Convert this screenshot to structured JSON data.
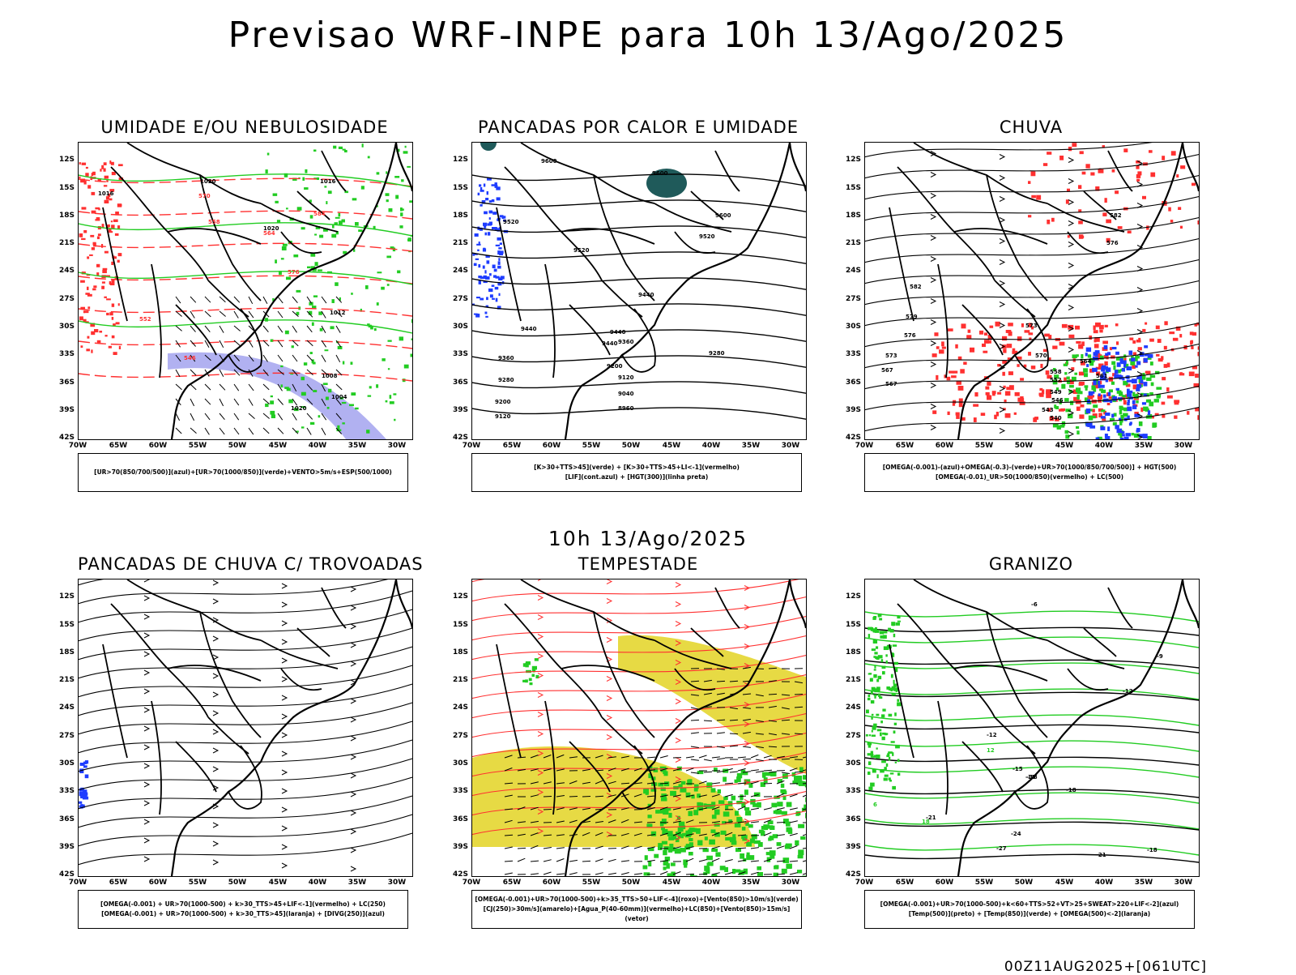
{
  "title": "Previsao WRF-INPE  para 10h 13/Ago/2025",
  "mid_title": "10h 13/Ago/2025",
  "footer": "00Z11AUG2025+[061UTC]",
  "lat_labels": [
    "12S",
    "15S",
    "18S",
    "21S",
    "24S",
    "27S",
    "30S",
    "33S",
    "36S",
    "39S",
    "42S"
  ],
  "lon_labels": [
    "70W",
    "65W",
    "60W",
    "55W",
    "50W",
    "45W",
    "40W",
    "35W",
    "30W"
  ],
  "colors": {
    "red": "#ff3030",
    "green": "#22cc22",
    "blue": "#1e3cff",
    "lavender": "#a8a8f0",
    "yellow": "#e6d83a",
    "teal": "#1f5a5a",
    "black": "#000000"
  },
  "panels": [
    {
      "id": "umidade",
      "title": "UMIDADE E/OU NEBULOSIDADE",
      "legend": [
        "[UR>70(850/700/500)](azul)+[UR>70(1000/850)](verde)+VENTO>5m/s+ESP(500/1000)"
      ],
      "contour_labels": [
        {
          "t": "1016",
          "c": "black"
        },
        {
          "t": "1020",
          "c": "black"
        },
        {
          "t": "1020",
          "c": "black"
        },
        {
          "t": "1016",
          "c": "black"
        },
        {
          "t": "1012",
          "c": "black"
        },
        {
          "t": "1008",
          "c": "black"
        },
        {
          "t": "1004",
          "c": "black"
        },
        {
          "t": "1020",
          "c": "black"
        },
        {
          "t": "576",
          "c": "red"
        },
        {
          "t": "570",
          "c": "red"
        },
        {
          "t": "564",
          "c": "red"
        },
        {
          "t": "558",
          "c": "red"
        },
        {
          "t": "552",
          "c": "red"
        },
        {
          "t": "546",
          "c": "red"
        },
        {
          "t": "584",
          "c": "red"
        }
      ]
    },
    {
      "id": "calor",
      "title": "PANCADAS POR CALOR E UMIDADE",
      "legend": [
        "[K>30+TTS>45](verde) + [K>30+TTS>45+LI<-1](vermelho)",
        "[LIF](cont.azul) + [HGT(300)](linha preta)"
      ],
      "contour_labels": [
        {
          "t": "9600",
          "c": "black"
        },
        {
          "t": "9600",
          "c": "black"
        },
        {
          "t": "9520",
          "c": "black"
        },
        {
          "t": "9520",
          "c": "black"
        },
        {
          "t": "9520",
          "c": "black"
        },
        {
          "t": "9600",
          "c": "black"
        },
        {
          "t": "9440",
          "c": "black"
        },
        {
          "t": "9440",
          "c": "black"
        },
        {
          "t": "9440",
          "c": "black"
        },
        {
          "t": "9360",
          "c": "black"
        },
        {
          "t": "9360",
          "c": "black"
        },
        {
          "t": "9280",
          "c": "black"
        },
        {
          "t": "9280",
          "c": "black"
        },
        {
          "t": "9200",
          "c": "black"
        },
        {
          "t": "9200",
          "c": "black"
        },
        {
          "t": "9120",
          "c": "black"
        },
        {
          "t": "9120",
          "c": "black"
        },
        {
          "t": "9040",
          "c": "black"
        },
        {
          "t": "8960",
          "c": "black"
        },
        {
          "t": "9440",
          "c": "black"
        }
      ]
    },
    {
      "id": "chuva",
      "title": "CHUVA",
      "legend": [
        "[OMEGA(-0.001)-(azul)+OMEGA(-0.3)-(verde)+UR>70(1000/850/700/500)] + HGT(500)",
        "[OMEGA(-0.01)_UR>50(1000/850)(vermelho) + LC(500)"
      ],
      "contour_labels": [
        {
          "t": "582",
          "c": "black"
        },
        {
          "t": "576",
          "c": "black"
        },
        {
          "t": "582",
          "c": "black"
        },
        {
          "t": "579",
          "c": "black"
        },
        {
          "t": "576",
          "c": "black"
        },
        {
          "t": "573",
          "c": "black"
        },
        {
          "t": "573",
          "c": "black"
        },
        {
          "t": "570",
          "c": "black"
        },
        {
          "t": "567",
          "c": "black"
        },
        {
          "t": "567",
          "c": "black"
        },
        {
          "t": "561",
          "c": "black"
        },
        {
          "t": "558",
          "c": "black"
        },
        {
          "t": "552",
          "c": "black"
        },
        {
          "t": "549",
          "c": "black"
        },
        {
          "t": "546",
          "c": "black"
        },
        {
          "t": "543",
          "c": "black"
        },
        {
          "t": "540",
          "c": "black"
        },
        {
          "t": "564",
          "c": "black"
        }
      ]
    },
    {
      "id": "trovoadas",
      "title": "PANCADAS DE CHUVA C/ TROVOADAS",
      "legend": [
        "[OMEGA(-0.001) + UR>70(1000-500) + k>30_TTS>45+LIF<-1](vermelho) + LC(250)",
        "[OMEGA(-0.001) + UR>70(1000-500) + k>30_TTS>45](laranja) + [DIVG(250)](azul)"
      ],
      "contour_labels": []
    },
    {
      "id": "tempestade",
      "title": "TEMPESTADE",
      "legend": [
        "[OMEGA(-0.001)+UR>70(1000-500)+k>35_TTS>50+LIF<-4](roxo)+[Vento(850)>10m/s](verde)",
        "[CJ(250)>30m/s](amarelo)+[Agua_P(40-60mm)](vermelho)+LC(850)+[Vento(850)>15m/s](vetor)"
      ],
      "contour_labels": []
    },
    {
      "id": "granizo",
      "title": "GRANIZO",
      "legend": [
        "[OMEGA(-0.001)+UR>70(1000-500)+k<60+TTS>52+VT>25+SWEAT>220+LIF<-2](azul)",
        "[Temp(500)](preto) + [Temp(850)](verde) + [OMEGA(500)<-2](laranja)"
      ],
      "contour_labels": [
        {
          "t": "-6",
          "c": "black"
        },
        {
          "t": "-9",
          "c": "black"
        },
        {
          "t": "-12",
          "c": "black"
        },
        {
          "t": "-12",
          "c": "black"
        },
        {
          "t": "-15",
          "c": "black"
        },
        {
          "t": "-18",
          "c": "black"
        },
        {
          "t": "-21",
          "c": "black"
        },
        {
          "t": "-24",
          "c": "black"
        },
        {
          "t": "-27",
          "c": "black"
        },
        {
          "t": "-21",
          "c": "black"
        },
        {
          "t": "-18",
          "c": "black"
        },
        {
          "t": "-15",
          "c": "black"
        },
        {
          "t": "12",
          "c": "green"
        },
        {
          "t": "6",
          "c": "green"
        },
        {
          "t": "18",
          "c": "green"
        },
        {
          "t": "-18",
          "c": "black"
        }
      ]
    }
  ]
}
